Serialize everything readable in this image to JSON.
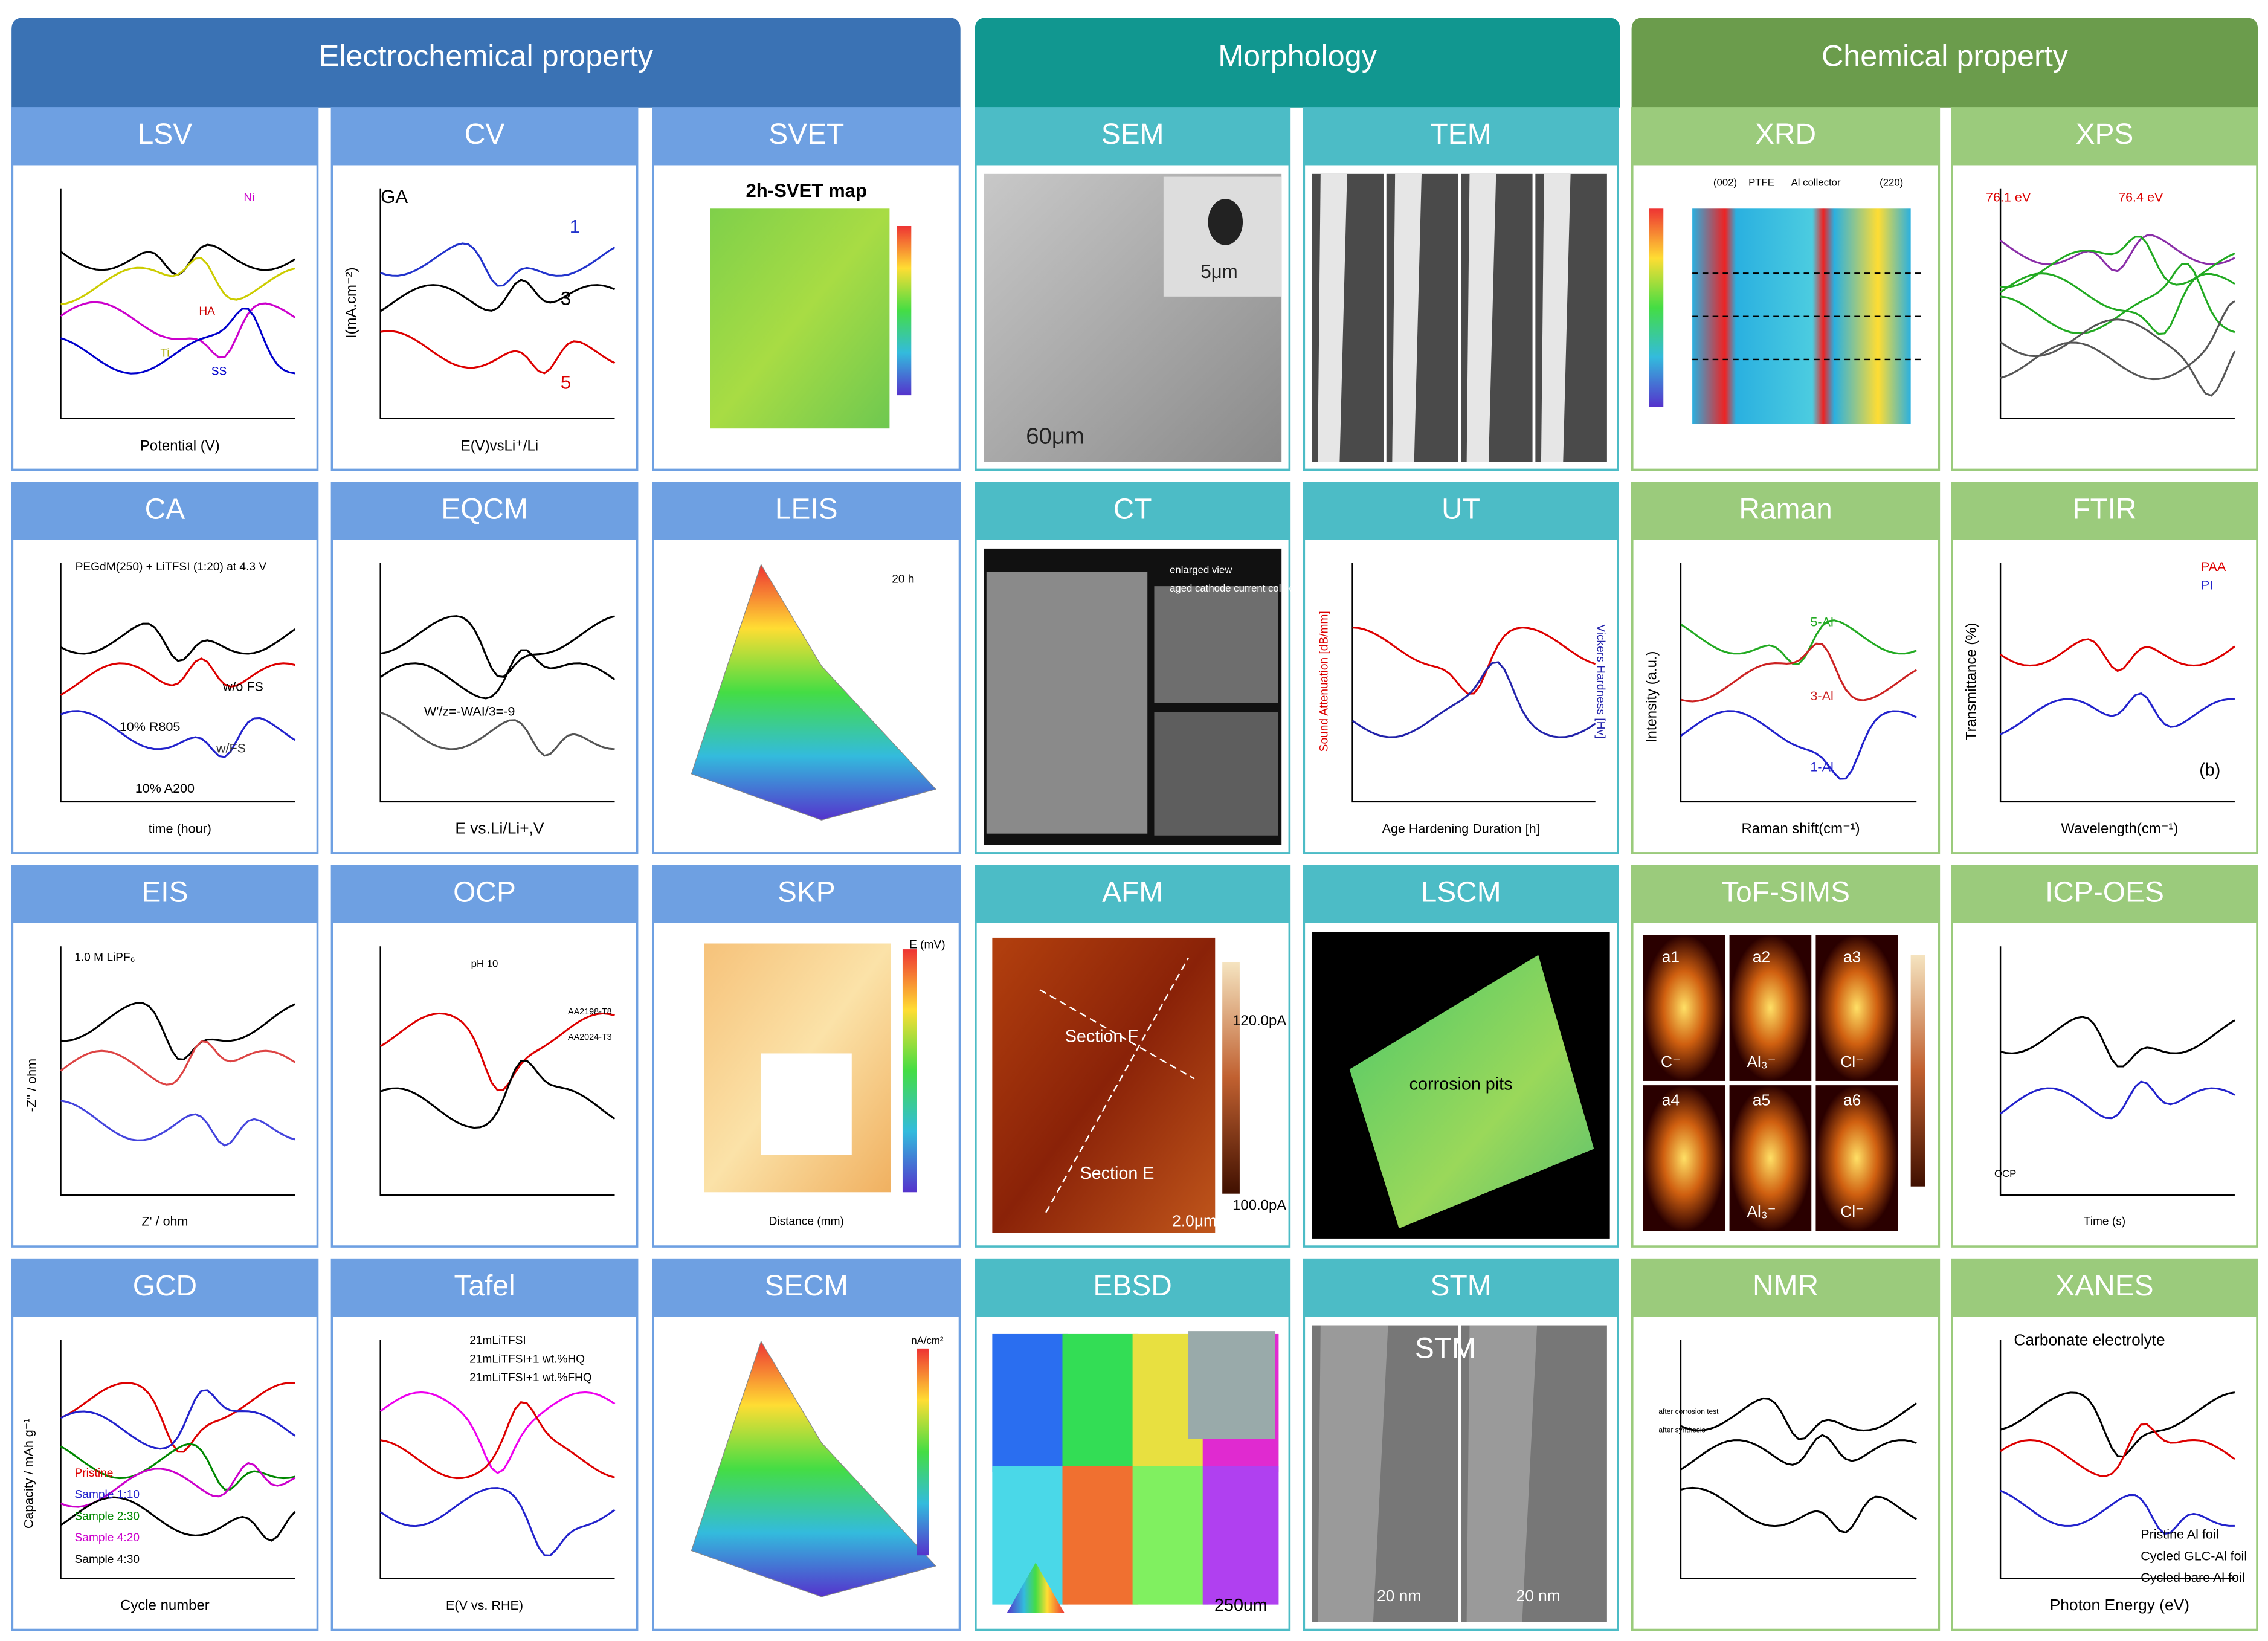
{
  "sections": [
    {
      "title": "Electrochemical property"
    },
    {
      "title": "Morphology"
    },
    {
      "title": "Chemical property"
    }
  ],
  "panels": [
    {
      "label": "LSV",
      "texts": [
        "Potential (V)",
        "Ni",
        "HA",
        "SS",
        "Ti"
      ]
    },
    {
      "label": "CV",
      "texts": [
        "GA",
        "E(V)vsLi⁺/Li",
        "I(mA.cm⁻²)",
        "1",
        "3",
        "5"
      ]
    },
    {
      "label": "SVET",
      "texts": [
        "2h-SVET map"
      ]
    },
    {
      "label": "SEM",
      "texts": [
        "60μm",
        "5μm"
      ]
    },
    {
      "label": "TEM",
      "texts": []
    },
    {
      "label": "XRD",
      "texts": [
        "(002)",
        "PTFE",
        "Al collector",
        "(220)"
      ]
    },
    {
      "label": "XPS",
      "texts": [
        "76.1 eV",
        "76.4 eV"
      ]
    },
    {
      "label": "CA",
      "texts": [
        "PEGdM(250) + LiTFSI (1:20) at 4.3 V",
        "time (hour)",
        "w/o FS",
        "10% R805",
        "w/FS",
        "10% A200"
      ]
    },
    {
      "label": "EQCM",
      "texts": [
        "E vs.Li/Li+,V",
        "W'/z=-WAI/3=-9"
      ]
    },
    {
      "label": "LEIS",
      "texts": [
        "20 h"
      ]
    },
    {
      "label": "CT",
      "texts": [
        "enlarged view",
        "aged cathode current collector"
      ]
    },
    {
      "label": "UT",
      "texts": [
        "Age Hardening Duration [h]",
        "Sound Attenuation [dB/mm]",
        "Vickers Hardness [Hv]"
      ]
    },
    {
      "label": "Raman",
      "texts": [
        "Raman shift(cm⁻¹)",
        "Intensity (a.u.)",
        "5-Al",
        "3-Al",
        "1-Al"
      ]
    },
    {
      "label": "FTIR",
      "texts": [
        "Wavelength(cm⁻¹)",
        "Transmittance (%)",
        "PAA",
        "PI",
        "(b)"
      ]
    },
    {
      "label": "EIS",
      "texts": [
        "1.0 M LiPF₆",
        "Z' / ohm",
        "-Z'' / ohm"
      ]
    },
    {
      "label": "OCP",
      "texts": [
        "pH 10",
        "AA2198-T8",
        "AA2024-T3"
      ]
    },
    {
      "label": "SKP",
      "texts": [
        "E (mV)",
        "Distance (mm)"
      ]
    },
    {
      "label": "AFM",
      "texts": [
        "Section F",
        "Section E",
        "120.0pA",
        "100.0pA",
        "2.0μm"
      ]
    },
    {
      "label": "LSCM",
      "texts": [
        "corrosion pits"
      ]
    },
    {
      "label": "ToF-SIMS",
      "texts": [
        "a1",
        "a2",
        "a3",
        "a4",
        "a5",
        "a6",
        "C⁻",
        "Al₃⁻",
        "Cl⁻",
        "Al₃⁻",
        "Cl⁻"
      ]
    },
    {
      "label": "ICP-OES",
      "texts": [
        "Time (s)",
        "OCP"
      ]
    },
    {
      "label": "GCD",
      "texts": [
        "Cycle number",
        "Capacity / mAh g⁻¹",
        "Pristine",
        "Sample 1:10",
        "Sample 2:30",
        "Sample 4:20",
        "Sample 4:30"
      ]
    },
    {
      "label": "Tafel",
      "texts": [
        "E(V vs. RHE)",
        "21mLiTFSI",
        "21mLiTFSI+1 wt.%HQ",
        "21mLiTFSI+1 wt.%FHQ"
      ]
    },
    {
      "label": "SECM",
      "texts": [
        "nA/cm²"
      ]
    },
    {
      "label": "EBSD",
      "texts": [
        "250um"
      ]
    },
    {
      "label": "STM",
      "texts": [
        "STM",
        "20 nm",
        "20 nm"
      ]
    },
    {
      "label": "NMR",
      "texts": [
        "after corrosion test",
        "after synthesis"
      ]
    },
    {
      "label": "XANES",
      "texts": [
        "Carbonate electrolyte",
        "Photon Energy (eV)",
        "Pristine Al foil",
        "Cycled GLC-Al foil",
        "Cycled bare Al foil"
      ]
    }
  ]
}
